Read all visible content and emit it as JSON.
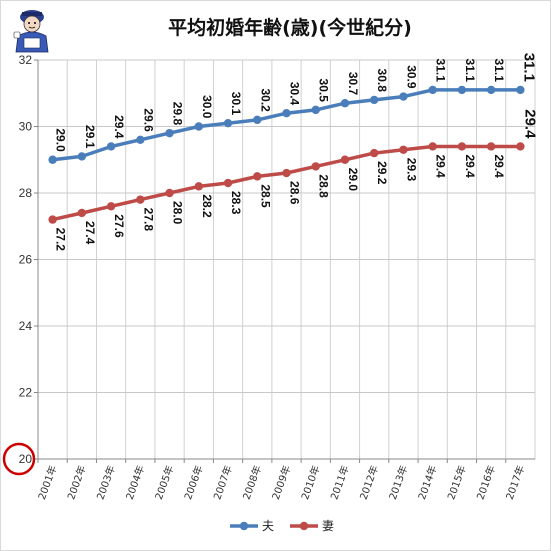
{
  "chart_data": {
    "type": "line",
    "title": "平均初婚年齢(歳)(今世紀分)",
    "categories": [
      "2001年",
      "2002年",
      "2003年",
      "2004年",
      "2005年",
      "2006年",
      "2007年",
      "2008年",
      "2009年",
      "2010年",
      "2011年",
      "2012年",
      "2013年",
      "2014年",
      "2015年",
      "2016年",
      "2017年"
    ],
    "series": [
      {
        "name": "夫",
        "color": "#4a7ebb",
        "values": [
          29.0,
          29.1,
          29.4,
          29.6,
          29.8,
          30.0,
          30.1,
          30.2,
          30.4,
          30.5,
          30.7,
          30.8,
          30.9,
          31.1,
          31.1,
          31.1,
          31.1
        ]
      },
      {
        "name": "妻",
        "color": "#be4b48",
        "values": [
          27.2,
          27.4,
          27.6,
          27.8,
          28.0,
          28.2,
          28.3,
          28.5,
          28.6,
          28.8,
          29.0,
          29.2,
          29.3,
          29.4,
          29.4,
          29.4,
          29.4
        ]
      }
    ],
    "data_labels": {
      "husband": [
        "29.0",
        "29.1",
        "29.4",
        "29.6",
        "29.8",
        "30.0",
        "30.1",
        "30.2",
        "30.4",
        "30.5",
        "30.7",
        "30.8",
        "30.9",
        "31.1",
        "31.1",
        "31.1",
        "31.1"
      ],
      "wife": [
        "27.2",
        "27.4",
        "27.6",
        "27.8",
        "28.0",
        "28.2",
        "28.3",
        "28.5",
        "28.6",
        "28.8",
        "29.0",
        "29.2",
        "29.3",
        "29.4",
        "29.4",
        "29.4",
        "29.4"
      ]
    },
    "y_ticks": [
      "20",
      "22",
      "24",
      "26",
      "28",
      "30",
      "32"
    ],
    "ylim": [
      20,
      32
    ],
    "grid": true,
    "legend_position": "bottom",
    "highlight_tick": "20",
    "highlight_color": "#cc0000",
    "xlabel": "",
    "ylabel": ""
  },
  "logo": {
    "icon": "mascot-icon"
  }
}
